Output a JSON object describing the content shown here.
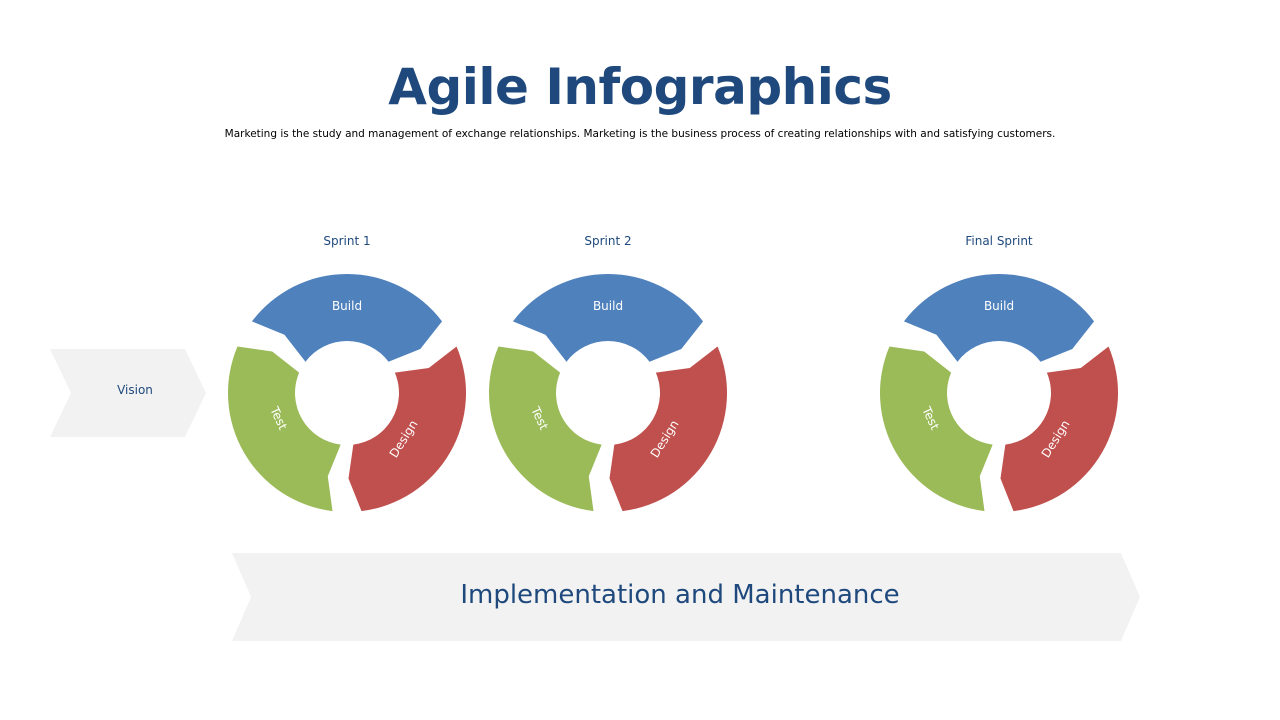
{
  "title": "Agile Infographics",
  "subtitle": "Marketing is the study and management of exchange relationships. Marketing is the  business process of creating relationships with and satisfying customers.",
  "vision_label": "Vision",
  "implementation_label": "Implementation and Maintenance",
  "sprints": [
    {
      "label": "Sprint 1",
      "segments": {
        "build": "Build",
        "test": "Test",
        "design": "Design"
      }
    },
    {
      "label": "Sprint 2",
      "segments": {
        "build": "Build",
        "test": "Test",
        "design": "Design"
      }
    },
    {
      "label": "Final Sprint",
      "segments": {
        "build": "Build",
        "test": "Test",
        "design": "Design"
      }
    }
  ],
  "colors": {
    "title": "#1f497d",
    "build": "#4f81bd",
    "design": "#c0504d",
    "test": "#9bbb59",
    "chevron": "#f2f2f2"
  }
}
